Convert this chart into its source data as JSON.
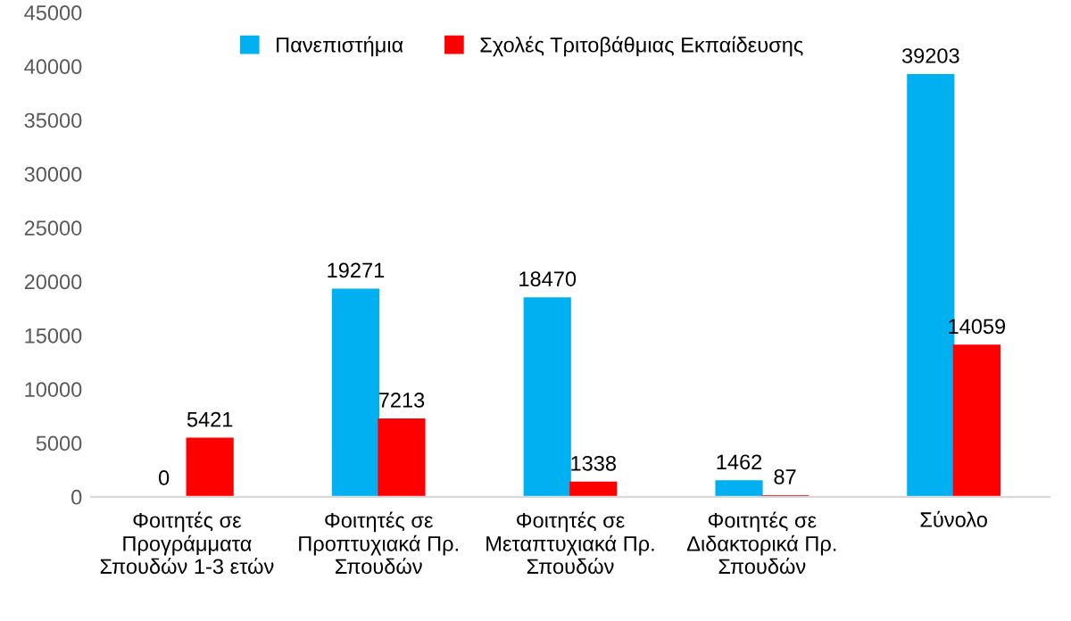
{
  "chart_data": {
    "type": "bar",
    "categories": [
      "Φοιτητές σε\nΠρογράμματα\nΣπουδών 1-3 ετών",
      "Φοιτητές σε\nΠροπτυχιακά Πρ.\nΣπουδών",
      "Φοιτητές σε\nΜεταπτυχιακά Πρ.\nΣπουδών",
      "Φοιτητές σε\nΔιδακτορικά Πρ.\nΣπουδών",
      "Σύνολο"
    ],
    "series": [
      {
        "name": "Πανεπιστήμια",
        "color": "#00b0f0",
        "values": [
          0,
          19271,
          18470,
          1462,
          39203
        ]
      },
      {
        "name": "Σχολές Τριτοβάθμιας Εκπαίδευσης",
        "color": "#ff0000",
        "values": [
          5421,
          7213,
          1338,
          87,
          14059
        ]
      }
    ],
    "ylim": [
      0,
      45000
    ],
    "yticks": [
      0,
      5000,
      10000,
      15000,
      20000,
      25000,
      30000,
      35000,
      40000,
      45000
    ],
    "data_labels": true,
    "legend": "top",
    "grid": false
  }
}
